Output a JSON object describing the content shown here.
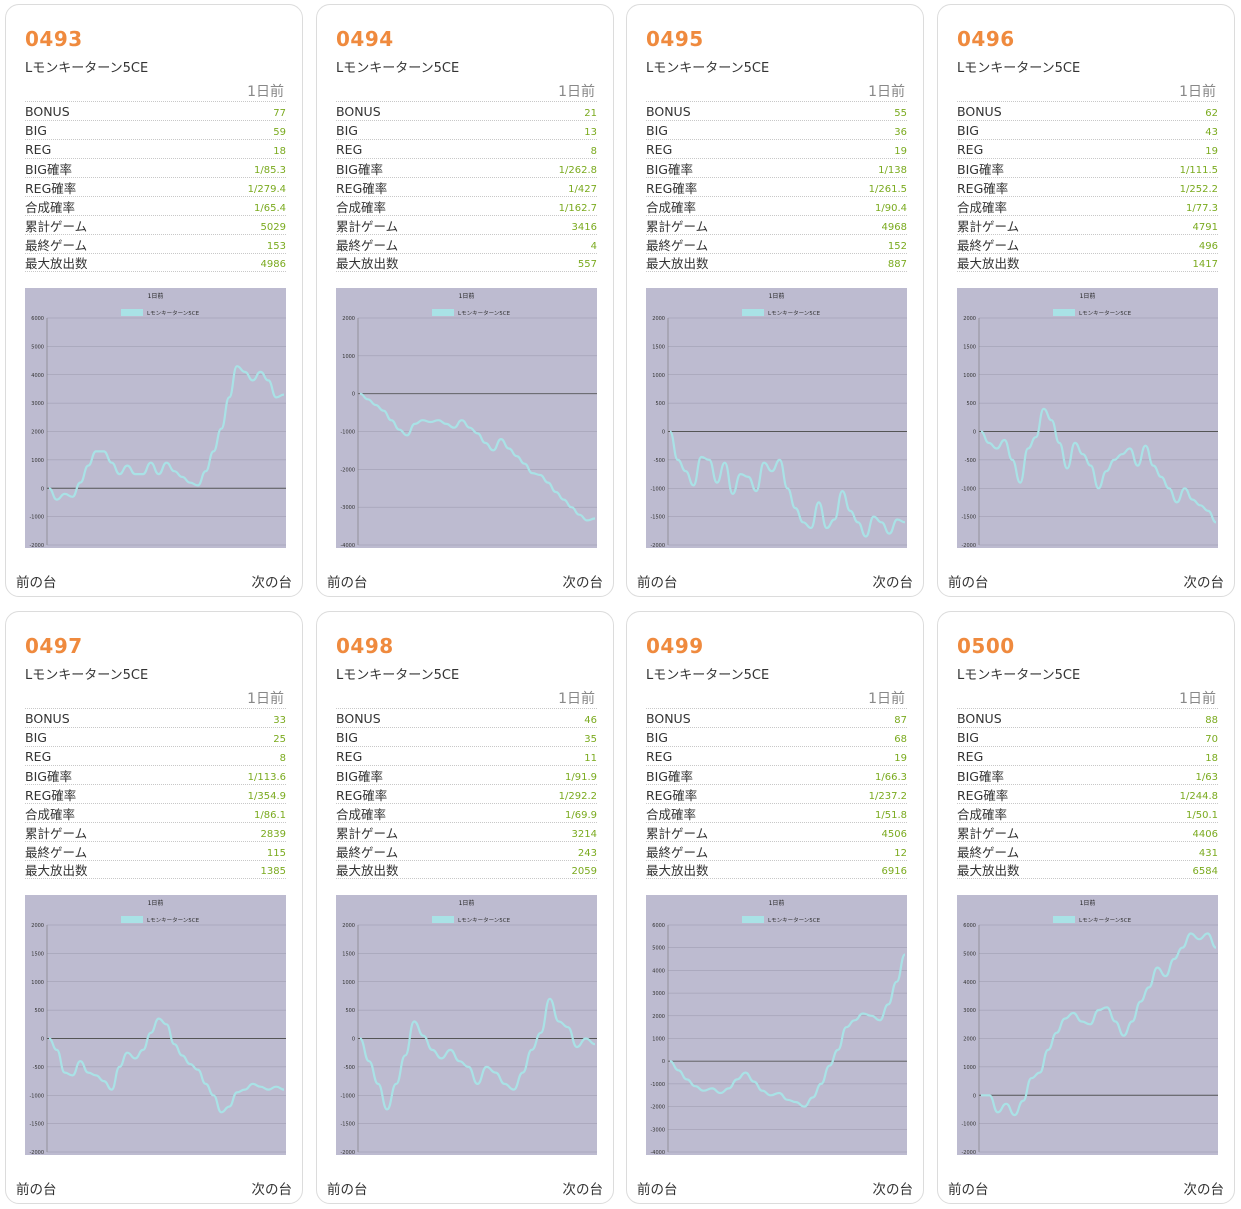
{
  "colors": {
    "accent": "#ef8a3e",
    "value": "#7aaa1e",
    "chart_bg": "#bdbbd0",
    "chart_line": "#a9e2e6"
  },
  "labels": {
    "day": "1日前",
    "prev": "前の台",
    "next": "次の台"
  },
  "stat_labels": [
    "BONUS",
    "BIG",
    "REG",
    "BIG確率",
    "REG確率",
    "合成確率",
    "累計ゲーム",
    "最終ゲーム",
    "最大放出数"
  ],
  "machines": [
    {
      "num": "0493",
      "name": "Lモンキーターン5CE",
      "stats": [
        "77",
        "59",
        "18",
        "1/85.3",
        "1/279.4",
        "1/65.4",
        "5029",
        "153",
        "4986"
      ]
    },
    {
      "num": "0494",
      "name": "Lモンキーターン5CE",
      "stats": [
        "21",
        "13",
        "8",
        "1/262.8",
        "1/427",
        "1/162.7",
        "3416",
        "4",
        "557"
      ]
    },
    {
      "num": "0495",
      "name": "Lモンキーターン5CE",
      "stats": [
        "55",
        "36",
        "19",
        "1/138",
        "1/261.5",
        "1/90.4",
        "4968",
        "152",
        "887"
      ]
    },
    {
      "num": "0496",
      "name": "Lモンキーターン5CE",
      "stats": [
        "62",
        "43",
        "19",
        "1/111.5",
        "1/252.2",
        "1/77.3",
        "4791",
        "496",
        "1417"
      ]
    },
    {
      "num": "0497",
      "name": "Lモンキーターン5CE",
      "stats": [
        "33",
        "25",
        "8",
        "1/113.6",
        "1/354.9",
        "1/86.1",
        "2839",
        "115",
        "1385"
      ]
    },
    {
      "num": "0498",
      "name": "Lモンキーターン5CE",
      "stats": [
        "46",
        "35",
        "11",
        "1/91.9",
        "1/292.2",
        "1/69.9",
        "3214",
        "243",
        "2059"
      ]
    },
    {
      "num": "0499",
      "name": "Lモンキーターン5CE",
      "stats": [
        "87",
        "68",
        "19",
        "1/66.3",
        "1/237.2",
        "1/51.8",
        "4506",
        "12",
        "6916"
      ]
    },
    {
      "num": "0500",
      "name": "Lモンキーターン5CE",
      "stats": [
        "88",
        "70",
        "18",
        "1/63",
        "1/244.8",
        "1/50.1",
        "4406",
        "431",
        "6584"
      ]
    }
  ],
  "chart_data": [
    {
      "type": "line",
      "title": "1日前",
      "series_name": "Lモンキーターン5CE",
      "ylim": [
        -2000,
        6000
      ],
      "yticks": [
        6000,
        5000,
        4000,
        3000,
        2000,
        1000,
        0,
        -1000,
        -2000
      ],
      "y": [
        0,
        -400,
        -200,
        -300,
        200,
        800,
        1300,
        1300,
        900,
        500,
        800,
        500,
        500,
        900,
        500,
        900,
        600,
        400,
        200,
        100,
        600,
        1300,
        2100,
        3200,
        4300,
        4100,
        3800,
        4100,
        3800,
        3200,
        3300
      ]
    },
    {
      "type": "line",
      "title": "1日前",
      "series_name": "Lモンキーターン5CE",
      "ylim": [
        -4000,
        2000
      ],
      "yticks": [
        2000,
        1000,
        0,
        -1000,
        -2000,
        -3000,
        -4000
      ],
      "y": [
        0,
        -150,
        -300,
        -450,
        -700,
        -950,
        -1100,
        -800,
        -700,
        -750,
        -700,
        -800,
        -900,
        -700,
        -900,
        -1050,
        -1300,
        -1500,
        -1200,
        -1450,
        -1650,
        -1850,
        -2100,
        -2150,
        -2350,
        -2600,
        -2800,
        -3000,
        -3200,
        -3350,
        -3300
      ]
    },
    {
      "type": "line",
      "title": "1日前",
      "series_name": "Lモンキーターン5CE",
      "ylim": [
        -2000,
        2000
      ],
      "yticks": [
        2000,
        1500,
        1000,
        500,
        0,
        -500,
        -1000,
        -1500,
        -2000
      ],
      "y": [
        0,
        -500,
        -700,
        -950,
        -450,
        -500,
        -900,
        -550,
        -1100,
        -750,
        -800,
        -1050,
        -550,
        -700,
        -500,
        -1000,
        -1350,
        -1600,
        -1700,
        -1250,
        -1700,
        -1550,
        -1050,
        -1400,
        -1600,
        -1850,
        -1500,
        -1600,
        -1800,
        -1550,
        -1600
      ]
    },
    {
      "type": "line",
      "title": "1日前",
      "series_name": "Lモンキーターン5CE",
      "ylim": [
        -2000,
        2000
      ],
      "yticks": [
        2000,
        1500,
        1000,
        500,
        0,
        -500,
        -1000,
        -1500,
        -2000
      ],
      "y": [
        0,
        -200,
        -300,
        -150,
        -500,
        -900,
        -300,
        -100,
        400,
        200,
        -200,
        -650,
        -200,
        -400,
        -600,
        -1000,
        -700,
        -500,
        -400,
        -300,
        -600,
        -250,
        -600,
        -800,
        -1000,
        -1250,
        -1000,
        -1200,
        -1300,
        -1400,
        -1600
      ]
    },
    {
      "type": "line",
      "title": "1日前",
      "series_name": "Lモンキーターン5CE",
      "ylim": [
        -2000,
        2000
      ],
      "yticks": [
        2000,
        1500,
        1000,
        500,
        0,
        -500,
        -1000,
        -1500,
        -2000
      ],
      "y": [
        0,
        -200,
        -600,
        -650,
        -400,
        -600,
        -650,
        -750,
        -900,
        -500,
        -250,
        -350,
        -200,
        100,
        350,
        250,
        -100,
        -300,
        -450,
        -550,
        -800,
        -1000,
        -1300,
        -1200,
        -950,
        -900,
        -800,
        -850,
        -900,
        -850,
        -900
      ]
    },
    {
      "type": "line",
      "title": "1日前",
      "series_name": "Lモンキーターン5CE",
      "ylim": [
        -2000,
        2000
      ],
      "yticks": [
        2000,
        1500,
        1000,
        500,
        0,
        -500,
        -1000,
        -1500,
        -2000
      ],
      "y": [
        0,
        -400,
        -800,
        -1250,
        -800,
        -300,
        300,
        50,
        -200,
        -350,
        -200,
        -400,
        -500,
        -800,
        -500,
        -600,
        -800,
        -900,
        -600,
        -200,
        100,
        700,
        300,
        200,
        -150,
        0,
        -100
      ]
    },
    {
      "type": "line",
      "title": "1日前",
      "series_name": "Lモンキーターン5CE",
      "ylim": [
        -4000,
        6000
      ],
      "yticks": [
        6000,
        5000,
        4000,
        3000,
        2000,
        1000,
        0,
        -1000,
        -2000,
        -3000,
        -4000
      ],
      "y": [
        0,
        -400,
        -800,
        -1100,
        -1300,
        -1200,
        -1400,
        -1200,
        -800,
        -500,
        -900,
        -1300,
        -1500,
        -1400,
        -1700,
        -1800,
        -2000,
        -1600,
        -1000,
        -200,
        500,
        1500,
        1800,
        2100,
        2000,
        1800,
        2500,
        3500,
        4700
      ]
    },
    {
      "type": "line",
      "title": "1日前",
      "series_name": "Lモンキーターン5CE",
      "ylim": [
        -2000,
        6000
      ],
      "yticks": [
        6000,
        5000,
        4000,
        3000,
        2000,
        1000,
        0,
        -1000,
        -2000
      ],
      "y": [
        0,
        0,
        -600,
        -300,
        -700,
        -200,
        600,
        800,
        1600,
        2200,
        2700,
        2900,
        2600,
        2500,
        3000,
        3100,
        2600,
        2100,
        2600,
        3300,
        3800,
        4500,
        4200,
        4800,
        5200,
        5700,
        5500,
        5700,
        5200
      ]
    }
  ]
}
